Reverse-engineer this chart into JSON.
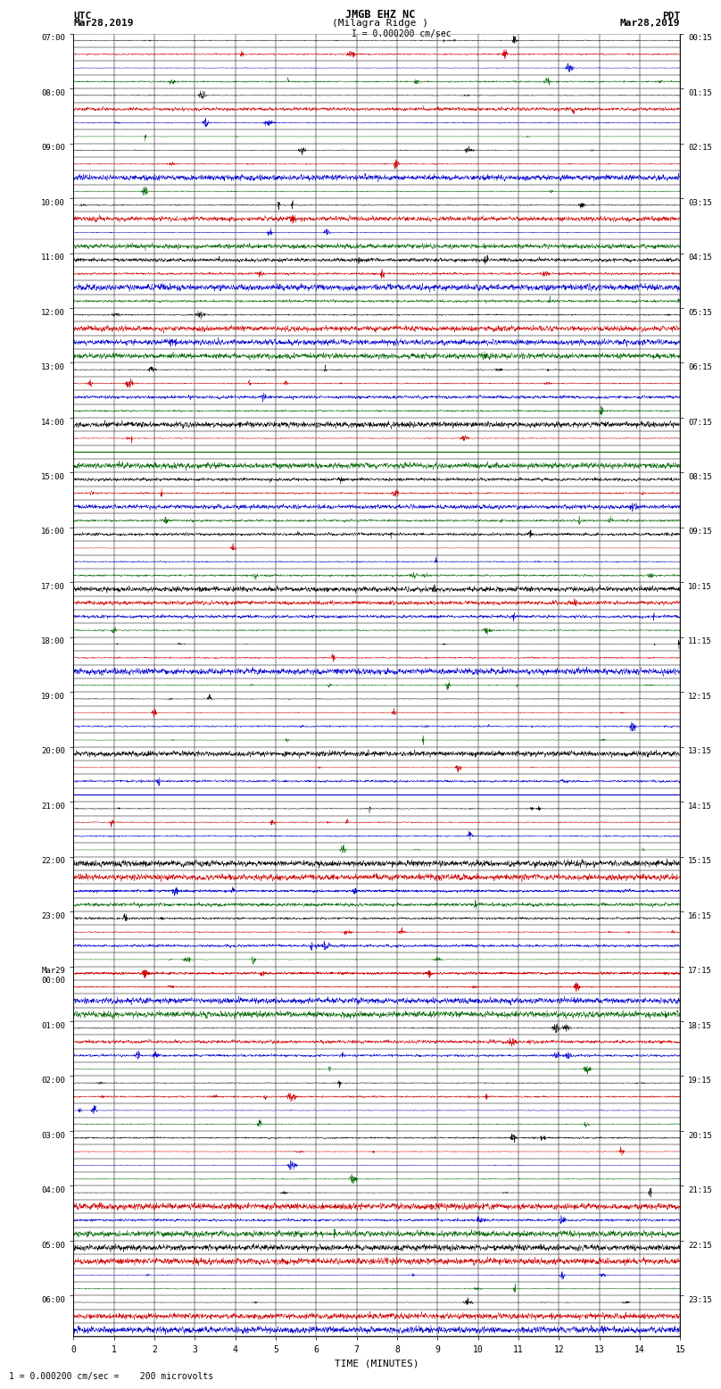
{
  "title_line1": "JMGB EHZ NC",
  "title_line2": "(Milagra Ridge )",
  "scale_label": "I = 0.000200 cm/sec",
  "left_label": "UTC",
  "left_date": "Mar28,2019",
  "right_label": "PDT",
  "right_date": "Mar28,2019",
  "bottom_label": "TIME (MINUTES)",
  "bottom_note": "1 = 0.000200 cm/sec =    200 microvolts",
  "x_ticks": [
    0,
    1,
    2,
    3,
    4,
    5,
    6,
    7,
    8,
    9,
    10,
    11,
    12,
    13,
    14,
    15
  ],
  "n_rows": 95,
  "x_min": 0,
  "x_max": 15,
  "background_color": "#ffffff",
  "fig_width": 8.5,
  "fig_height": 16.13,
  "colors_cycle": [
    "#000000",
    "#cc0000",
    "#0000cc",
    "#006600"
  ],
  "utc_hour_labels": [
    "07:00",
    "08:00",
    "09:00",
    "10:00",
    "11:00",
    "12:00",
    "13:00",
    "14:00",
    "15:00",
    "16:00",
    "17:00",
    "18:00",
    "19:00",
    "20:00",
    "21:00",
    "22:00",
    "23:00",
    "Mar29\n00:00",
    "01:00",
    "02:00",
    "03:00",
    "04:00",
    "05:00",
    "06:00"
  ],
  "pdt_hour_labels": [
    "00:15",
    "01:15",
    "02:15",
    "03:15",
    "04:15",
    "05:15",
    "06:15",
    "07:15",
    "08:15",
    "09:15",
    "10:15",
    "11:15",
    "12:15",
    "13:15",
    "14:15",
    "15:15",
    "16:15",
    "17:15",
    "18:15",
    "19:15",
    "20:15",
    "21:15",
    "22:15",
    "23:15"
  ],
  "special_full_lines": {
    "30": {
      "color": "#006600",
      "amplitude": 8.0
    },
    "31": {
      "color": "#006600",
      "amplitude": 8.0
    },
    "55": {
      "color": "#0000cc",
      "amplitude": 8.0
    },
    "60": {
      "color": "#cc0000",
      "amplitude": 8.0
    },
    "62": {
      "color": "#0000cc",
      "amplitude": 15.0
    },
    "68": {
      "color": "#cc0000",
      "amplitude": 12.0
    }
  }
}
